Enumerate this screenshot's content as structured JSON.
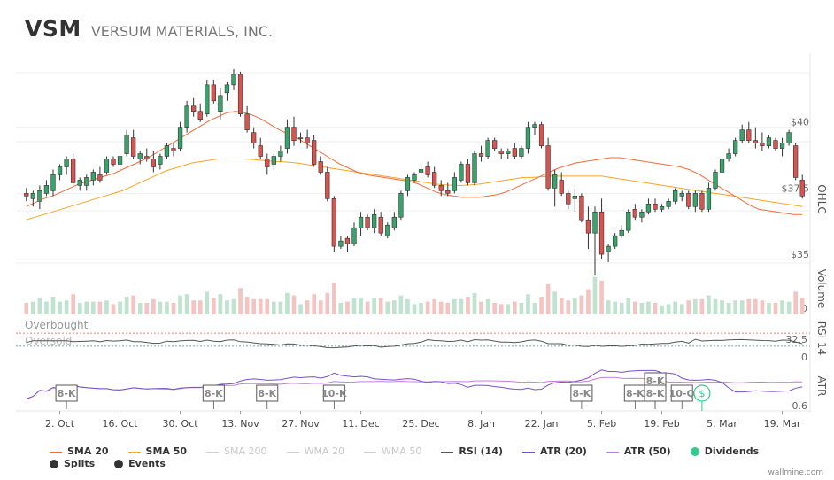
{
  "header": {
    "ticker": "VSM",
    "company": "VERSUM MATERIALS, INC."
  },
  "credit": "wallmine.com",
  "legend": [
    {
      "label": "SMA 20",
      "color": "#f26b3a",
      "kind": "line",
      "state": "on"
    },
    {
      "label": "SMA 50",
      "color": "#f5a623",
      "kind": "line",
      "state": "on"
    },
    {
      "label": "SMA 200",
      "color": "#d0d0d0",
      "kind": "line",
      "state": "off"
    },
    {
      "label": "WMA 20",
      "color": "#d0d0d0",
      "kind": "line",
      "state": "off"
    },
    {
      "label": "WMA 50",
      "color": "#d0d0d0",
      "kind": "line",
      "state": "off"
    },
    {
      "label": "RSI (14)",
      "color": "#555555",
      "kind": "line",
      "state": "on"
    },
    {
      "label": "ATR (20)",
      "color": "#7b4fc9",
      "kind": "line",
      "state": "on"
    },
    {
      "label": "ATR (50)",
      "color": "#c77be0",
      "kind": "line",
      "state": "on"
    },
    {
      "label": "Dividends",
      "color": "#2fcc8b",
      "kind": "dot",
      "state": "on"
    },
    {
      "label": "Splits",
      "color": "#333333",
      "kind": "dot",
      "state": "on"
    },
    {
      "label": "Events",
      "color": "#333333",
      "kind": "dot",
      "state": "on"
    }
  ],
  "chart_data": {
    "type": "candlestick",
    "x_ticks": [
      "2. Oct",
      "16. Oct",
      "30. Oct",
      "13. Nov",
      "27. Nov",
      "11. Dec",
      "25. Dec",
      "8. Jan",
      "22. Jan",
      "5. Feb",
      "19. Feb",
      "5. Mar",
      "19. Mar"
    ],
    "panes": {
      "ohlc": {
        "label": "OHLC",
        "y_ticks": [
          "$35",
          "$37.5",
          "$40"
        ],
        "ylim": [
          34.6,
          42.8
        ]
      },
      "volume": {
        "label": "Volume",
        "y_ticks": [
          "0"
        ]
      },
      "rsi": {
        "label": "RSI 14",
        "y_ticks": [
          "32.5",
          "0"
        ],
        "ylim": [
          0,
          100
        ],
        "overbought_label": "Overbought",
        "oversold_label": "Oversold",
        "overbought": 70,
        "oversold": 30
      },
      "atr": {
        "label": "ATR",
        "y_ticks": [
          "0.6"
        ]
      }
    },
    "up_color": "#3aa36b",
    "down_color": "#d9534f",
    "candles": [
      {
        "o": 37.5,
        "h": 37.7,
        "l": 37.2,
        "c": 37.4
      },
      {
        "o": 37.3,
        "h": 37.6,
        "l": 37.0,
        "c": 37.5
      },
      {
        "o": 37.2,
        "h": 37.8,
        "l": 36.9,
        "c": 37.6
      },
      {
        "o": 37.5,
        "h": 38.0,
        "l": 37.4,
        "c": 37.8
      },
      {
        "o": 37.6,
        "h": 38.4,
        "l": 37.4,
        "c": 38.2
      },
      {
        "o": 38.2,
        "h": 38.6,
        "l": 38.0,
        "c": 38.5
      },
      {
        "o": 38.5,
        "h": 38.9,
        "l": 38.2,
        "c": 38.8
      },
      {
        "o": 38.8,
        "h": 39.0,
        "l": 37.8,
        "c": 37.9
      },
      {
        "o": 37.8,
        "h": 38.1,
        "l": 37.6,
        "c": 38.0
      },
      {
        "o": 37.8,
        "h": 38.2,
        "l": 37.6,
        "c": 38.1
      },
      {
        "o": 38.0,
        "h": 38.4,
        "l": 37.8,
        "c": 38.3
      },
      {
        "o": 38.2,
        "h": 38.5,
        "l": 37.9,
        "c": 38.0
      },
      {
        "o": 38.3,
        "h": 38.9,
        "l": 38.2,
        "c": 38.8
      },
      {
        "o": 38.8,
        "h": 38.9,
        "l": 38.5,
        "c": 38.6
      },
      {
        "o": 38.6,
        "h": 39.0,
        "l": 38.4,
        "c": 38.9
      },
      {
        "o": 39.0,
        "h": 39.9,
        "l": 38.9,
        "c": 39.7
      },
      {
        "o": 39.6,
        "h": 39.9,
        "l": 38.8,
        "c": 38.9
      },
      {
        "o": 38.8,
        "h": 39.1,
        "l": 38.6,
        "c": 39.0
      },
      {
        "o": 38.9,
        "h": 39.2,
        "l": 38.7,
        "c": 38.8
      },
      {
        "o": 38.8,
        "h": 39.1,
        "l": 38.3,
        "c": 38.5
      },
      {
        "o": 38.6,
        "h": 39.0,
        "l": 38.4,
        "c": 38.9
      },
      {
        "o": 38.9,
        "h": 39.4,
        "l": 38.8,
        "c": 39.3
      },
      {
        "o": 39.2,
        "h": 39.4,
        "l": 38.9,
        "c": 39.1
      },
      {
        "o": 39.2,
        "h": 40.2,
        "l": 39.1,
        "c": 40.0
      },
      {
        "o": 40.0,
        "h": 41.0,
        "l": 39.8,
        "c": 40.8
      },
      {
        "o": 40.8,
        "h": 41.1,
        "l": 40.4,
        "c": 40.6
      },
      {
        "o": 40.6,
        "h": 40.9,
        "l": 40.2,
        "c": 40.3
      },
      {
        "o": 40.5,
        "h": 41.8,
        "l": 40.4,
        "c": 41.6
      },
      {
        "o": 41.6,
        "h": 41.8,
        "l": 40.9,
        "c": 41.0
      },
      {
        "o": 40.6,
        "h": 41.5,
        "l": 40.3,
        "c": 41.2
      },
      {
        "o": 41.3,
        "h": 41.7,
        "l": 41.0,
        "c": 41.6
      },
      {
        "o": 41.6,
        "h": 42.2,
        "l": 41.4,
        "c": 42.0
      },
      {
        "o": 42.0,
        "h": 42.1,
        "l": 40.4,
        "c": 40.5
      },
      {
        "o": 40.5,
        "h": 40.8,
        "l": 39.8,
        "c": 39.9
      },
      {
        "o": 39.8,
        "h": 40.0,
        "l": 39.2,
        "c": 39.4
      },
      {
        "o": 39.3,
        "h": 39.6,
        "l": 38.8,
        "c": 38.9
      },
      {
        "o": 38.8,
        "h": 39.0,
        "l": 38.2,
        "c": 38.5
      },
      {
        "o": 38.6,
        "h": 39.0,
        "l": 38.4,
        "c": 38.9
      },
      {
        "o": 38.9,
        "h": 39.3,
        "l": 38.7,
        "c": 39.1
      },
      {
        "o": 39.2,
        "h": 40.3,
        "l": 39.0,
        "c": 40.0
      },
      {
        "o": 40.0,
        "h": 40.4,
        "l": 39.3,
        "c": 39.5
      },
      {
        "o": 39.6,
        "h": 39.8,
        "l": 39.4,
        "c": 39.6
      },
      {
        "o": 39.6,
        "h": 39.9,
        "l": 39.2,
        "c": 39.4
      },
      {
        "o": 39.5,
        "h": 39.7,
        "l": 38.5,
        "c": 38.6
      },
      {
        "o": 38.7,
        "h": 38.9,
        "l": 38.2,
        "c": 38.3
      },
      {
        "o": 38.3,
        "h": 38.5,
        "l": 37.2,
        "c": 37.3
      },
      {
        "o": 37.3,
        "h": 37.4,
        "l": 35.3,
        "c": 35.5
      },
      {
        "o": 35.5,
        "h": 35.9,
        "l": 35.4,
        "c": 35.7
      },
      {
        "o": 35.8,
        "h": 35.9,
        "l": 35.3,
        "c": 35.6
      },
      {
        "o": 35.6,
        "h": 36.4,
        "l": 35.5,
        "c": 36.2
      },
      {
        "o": 36.2,
        "h": 36.8,
        "l": 35.9,
        "c": 36.6
      },
      {
        "o": 36.6,
        "h": 36.7,
        "l": 36.1,
        "c": 36.2
      },
      {
        "o": 36.2,
        "h": 36.9,
        "l": 36.0,
        "c": 36.7
      },
      {
        "o": 36.6,
        "h": 36.8,
        "l": 35.9,
        "c": 36.0
      },
      {
        "o": 35.9,
        "h": 36.4,
        "l": 35.8,
        "c": 36.3
      },
      {
        "o": 36.2,
        "h": 36.8,
        "l": 36.1,
        "c": 36.6
      },
      {
        "o": 36.6,
        "h": 37.6,
        "l": 36.5,
        "c": 37.5
      },
      {
        "o": 37.6,
        "h": 38.2,
        "l": 37.4,
        "c": 38.1
      },
      {
        "o": 38.0,
        "h": 38.3,
        "l": 37.9,
        "c": 38.2
      },
      {
        "o": 38.3,
        "h": 38.6,
        "l": 38.1,
        "c": 38.4
      },
      {
        "o": 38.5,
        "h": 38.7,
        "l": 38.1,
        "c": 38.2
      },
      {
        "o": 38.3,
        "h": 38.5,
        "l": 37.7,
        "c": 37.8
      },
      {
        "o": 37.8,
        "h": 38.0,
        "l": 37.4,
        "c": 37.6
      },
      {
        "o": 37.6,
        "h": 37.9,
        "l": 37.4,
        "c": 37.5
      },
      {
        "o": 37.6,
        "h": 38.3,
        "l": 37.5,
        "c": 38.1
      },
      {
        "o": 38.0,
        "h": 38.7,
        "l": 37.9,
        "c": 38.6
      },
      {
        "o": 38.6,
        "h": 38.8,
        "l": 37.8,
        "c": 37.9
      },
      {
        "o": 37.9,
        "h": 39.1,
        "l": 37.8,
        "c": 39.0
      },
      {
        "o": 39.0,
        "h": 39.3,
        "l": 38.7,
        "c": 38.9
      },
      {
        "o": 38.9,
        "h": 39.6,
        "l": 38.8,
        "c": 39.5
      },
      {
        "o": 39.5,
        "h": 39.6,
        "l": 39.1,
        "c": 39.2
      },
      {
        "o": 39.1,
        "h": 39.2,
        "l": 38.8,
        "c": 39.0
      },
      {
        "o": 39.0,
        "h": 39.2,
        "l": 38.8,
        "c": 39.1
      },
      {
        "o": 39.2,
        "h": 39.4,
        "l": 38.8,
        "c": 38.9
      },
      {
        "o": 38.9,
        "h": 39.3,
        "l": 38.8,
        "c": 39.2
      },
      {
        "o": 39.2,
        "h": 40.2,
        "l": 39.0,
        "c": 40.0
      },
      {
        "o": 40.0,
        "h": 40.2,
        "l": 39.7,
        "c": 40.1
      },
      {
        "o": 40.1,
        "h": 40.2,
        "l": 39.2,
        "c": 39.3
      },
      {
        "o": 39.3,
        "h": 39.6,
        "l": 37.6,
        "c": 37.7
      },
      {
        "o": 37.7,
        "h": 38.4,
        "l": 37.0,
        "c": 38.2
      },
      {
        "o": 38.0,
        "h": 38.3,
        "l": 37.4,
        "c": 37.5
      },
      {
        "o": 37.5,
        "h": 37.6,
        "l": 36.9,
        "c": 37.1
      },
      {
        "o": 37.3,
        "h": 37.7,
        "l": 36.8,
        "c": 37.4
      },
      {
        "o": 37.4,
        "h": 37.5,
        "l": 36.4,
        "c": 36.5
      },
      {
        "o": 36.5,
        "h": 37.0,
        "l": 35.4,
        "c": 36.0
      },
      {
        "o": 36.0,
        "h": 37.0,
        "l": 34.4,
        "c": 36.8
      },
      {
        "o": 36.8,
        "h": 37.3,
        "l": 35.0,
        "c": 35.2
      },
      {
        "o": 35.3,
        "h": 35.6,
        "l": 34.9,
        "c": 35.5
      },
      {
        "o": 35.5,
        "h": 36.0,
        "l": 35.4,
        "c": 35.9
      },
      {
        "o": 35.9,
        "h": 36.3,
        "l": 35.8,
        "c": 36.1
      },
      {
        "o": 36.1,
        "h": 36.9,
        "l": 36.0,
        "c": 36.8
      },
      {
        "o": 36.9,
        "h": 37.1,
        "l": 36.5,
        "c": 36.6
      },
      {
        "o": 36.6,
        "h": 36.9,
        "l": 36.4,
        "c": 36.8
      },
      {
        "o": 36.8,
        "h": 37.3,
        "l": 36.7,
        "c": 37.1
      },
      {
        "o": 37.1,
        "h": 37.3,
        "l": 36.8,
        "c": 36.9
      },
      {
        "o": 36.9,
        "h": 37.1,
        "l": 36.8,
        "c": 37.0
      },
      {
        "o": 37.0,
        "h": 37.3,
        "l": 36.9,
        "c": 37.2
      },
      {
        "o": 37.2,
        "h": 37.7,
        "l": 37.1,
        "c": 37.6
      },
      {
        "o": 37.4,
        "h": 37.6,
        "l": 37.2,
        "c": 37.5
      },
      {
        "o": 37.5,
        "h": 37.6,
        "l": 36.9,
        "c": 37.0
      },
      {
        "o": 37.0,
        "h": 37.6,
        "l": 36.8,
        "c": 37.5
      },
      {
        "o": 37.5,
        "h": 37.6,
        "l": 36.8,
        "c": 36.9
      },
      {
        "o": 36.9,
        "h": 37.9,
        "l": 36.8,
        "c": 37.7
      },
      {
        "o": 37.7,
        "h": 38.4,
        "l": 37.6,
        "c": 38.3
      },
      {
        "o": 38.3,
        "h": 38.9,
        "l": 38.2,
        "c": 38.8
      },
      {
        "o": 38.8,
        "h": 39.2,
        "l": 38.7,
        "c": 39.0
      },
      {
        "o": 39.0,
        "h": 39.6,
        "l": 38.9,
        "c": 39.5
      },
      {
        "o": 39.5,
        "h": 40.1,
        "l": 39.4,
        "c": 39.9
      },
      {
        "o": 39.9,
        "h": 40.2,
        "l": 39.4,
        "c": 39.5
      },
      {
        "o": 39.5,
        "h": 40.0,
        "l": 39.2,
        "c": 39.4
      },
      {
        "o": 39.4,
        "h": 39.8,
        "l": 39.1,
        "c": 39.3
      },
      {
        "o": 39.3,
        "h": 39.7,
        "l": 39.2,
        "c": 39.6
      },
      {
        "o": 39.5,
        "h": 39.6,
        "l": 39.1,
        "c": 39.2
      },
      {
        "o": 39.2,
        "h": 39.6,
        "l": 38.9,
        "c": 39.4
      },
      {
        "o": 39.4,
        "h": 39.9,
        "l": 39.3,
        "c": 39.8
      },
      {
        "o": 39.3,
        "h": 39.4,
        "l": 38.0,
        "c": 38.1
      },
      {
        "o": 38.0,
        "h": 38.2,
        "l": 37.3,
        "c": 37.4
      }
    ],
    "sma20": [
      37.0,
      37.15,
      37.3,
      37.4,
      37.55,
      37.7,
      37.85,
      37.95,
      38.05,
      38.15,
      38.25,
      38.4,
      38.55,
      38.7,
      38.85,
      39.05,
      39.25,
      39.45,
      39.65,
      39.85,
      40.05,
      40.25,
      40.4,
      40.55,
      40.6,
      40.55,
      40.45,
      40.3,
      40.1,
      39.9,
      39.75,
      39.6,
      39.4,
      39.2,
      39.0,
      38.8,
      38.6,
      38.45,
      38.3,
      38.2,
      38.15,
      38.1,
      38.05,
      38.0,
      37.95,
      37.85,
      37.7,
      37.55,
      37.45,
      37.4,
      37.35,
      37.35,
      37.35,
      37.4,
      37.45,
      37.55,
      37.7,
      37.85,
      38.0,
      38.15,
      38.3,
      38.45,
      38.55,
      38.65,
      38.7,
      38.75,
      38.8,
      38.85,
      38.85,
      38.8,
      38.75,
      38.7,
      38.65,
      38.6,
      38.55,
      38.5,
      38.4,
      38.25,
      38.05,
      37.85,
      37.65,
      37.45,
      37.25,
      37.05,
      36.9,
      36.85,
      36.8,
      36.75,
      36.7,
      36.7
    ],
    "sma50": [
      36.5,
      36.6,
      36.7,
      36.8,
      36.9,
      37.0,
      37.1,
      37.2,
      37.3,
      37.4,
      37.5,
      37.6,
      37.75,
      37.9,
      38.05,
      38.2,
      38.35,
      38.45,
      38.55,
      38.65,
      38.7,
      38.75,
      38.8,
      38.8,
      38.8,
      38.8,
      38.78,
      38.75,
      38.72,
      38.7,
      38.68,
      38.65,
      38.6,
      38.55,
      38.5,
      38.45,
      38.4,
      38.35,
      38.3,
      38.25,
      38.2,
      38.15,
      38.1,
      38.05,
      38.0,
      37.95,
      37.9,
      37.85,
      37.82,
      37.8,
      37.8,
      37.82,
      37.85,
      37.9,
      37.95,
      38.0,
      38.05,
      38.1,
      38.1,
      38.12,
      38.15,
      38.15,
      38.15,
      38.15,
      38.15,
      38.15,
      38.15,
      38.1,
      38.05,
      38.0,
      37.95,
      37.9,
      37.85,
      37.8,
      37.75,
      37.7,
      37.65,
      37.6,
      37.55,
      37.5,
      37.45,
      37.4,
      37.35,
      37.3,
      37.25,
      37.2,
      37.15,
      37.1,
      37.05,
      37.0
    ],
    "events": [
      {
        "label": "8-K",
        "x_index": 6,
        "tier": 0
      },
      {
        "label": "8-K",
        "x_index": 28,
        "tier": 0
      },
      {
        "label": "8-K",
        "x_index": 36,
        "tier": 0
      },
      {
        "label": "10-K",
        "x_index": 46,
        "tier": 0
      },
      {
        "label": "8-K",
        "x_index": 83,
        "tier": 0
      },
      {
        "label": "8-K",
        "x_index": 91,
        "tier": 0
      },
      {
        "label": "8-K",
        "x_index": 94,
        "tier": 1
      },
      {
        "label": "8-K",
        "x_index": 94,
        "tier": 0
      },
      {
        "label": "10-Q",
        "x_index": 98,
        "tier": 0
      }
    ],
    "dividend": {
      "label": "$",
      "x_index": 101
    }
  }
}
